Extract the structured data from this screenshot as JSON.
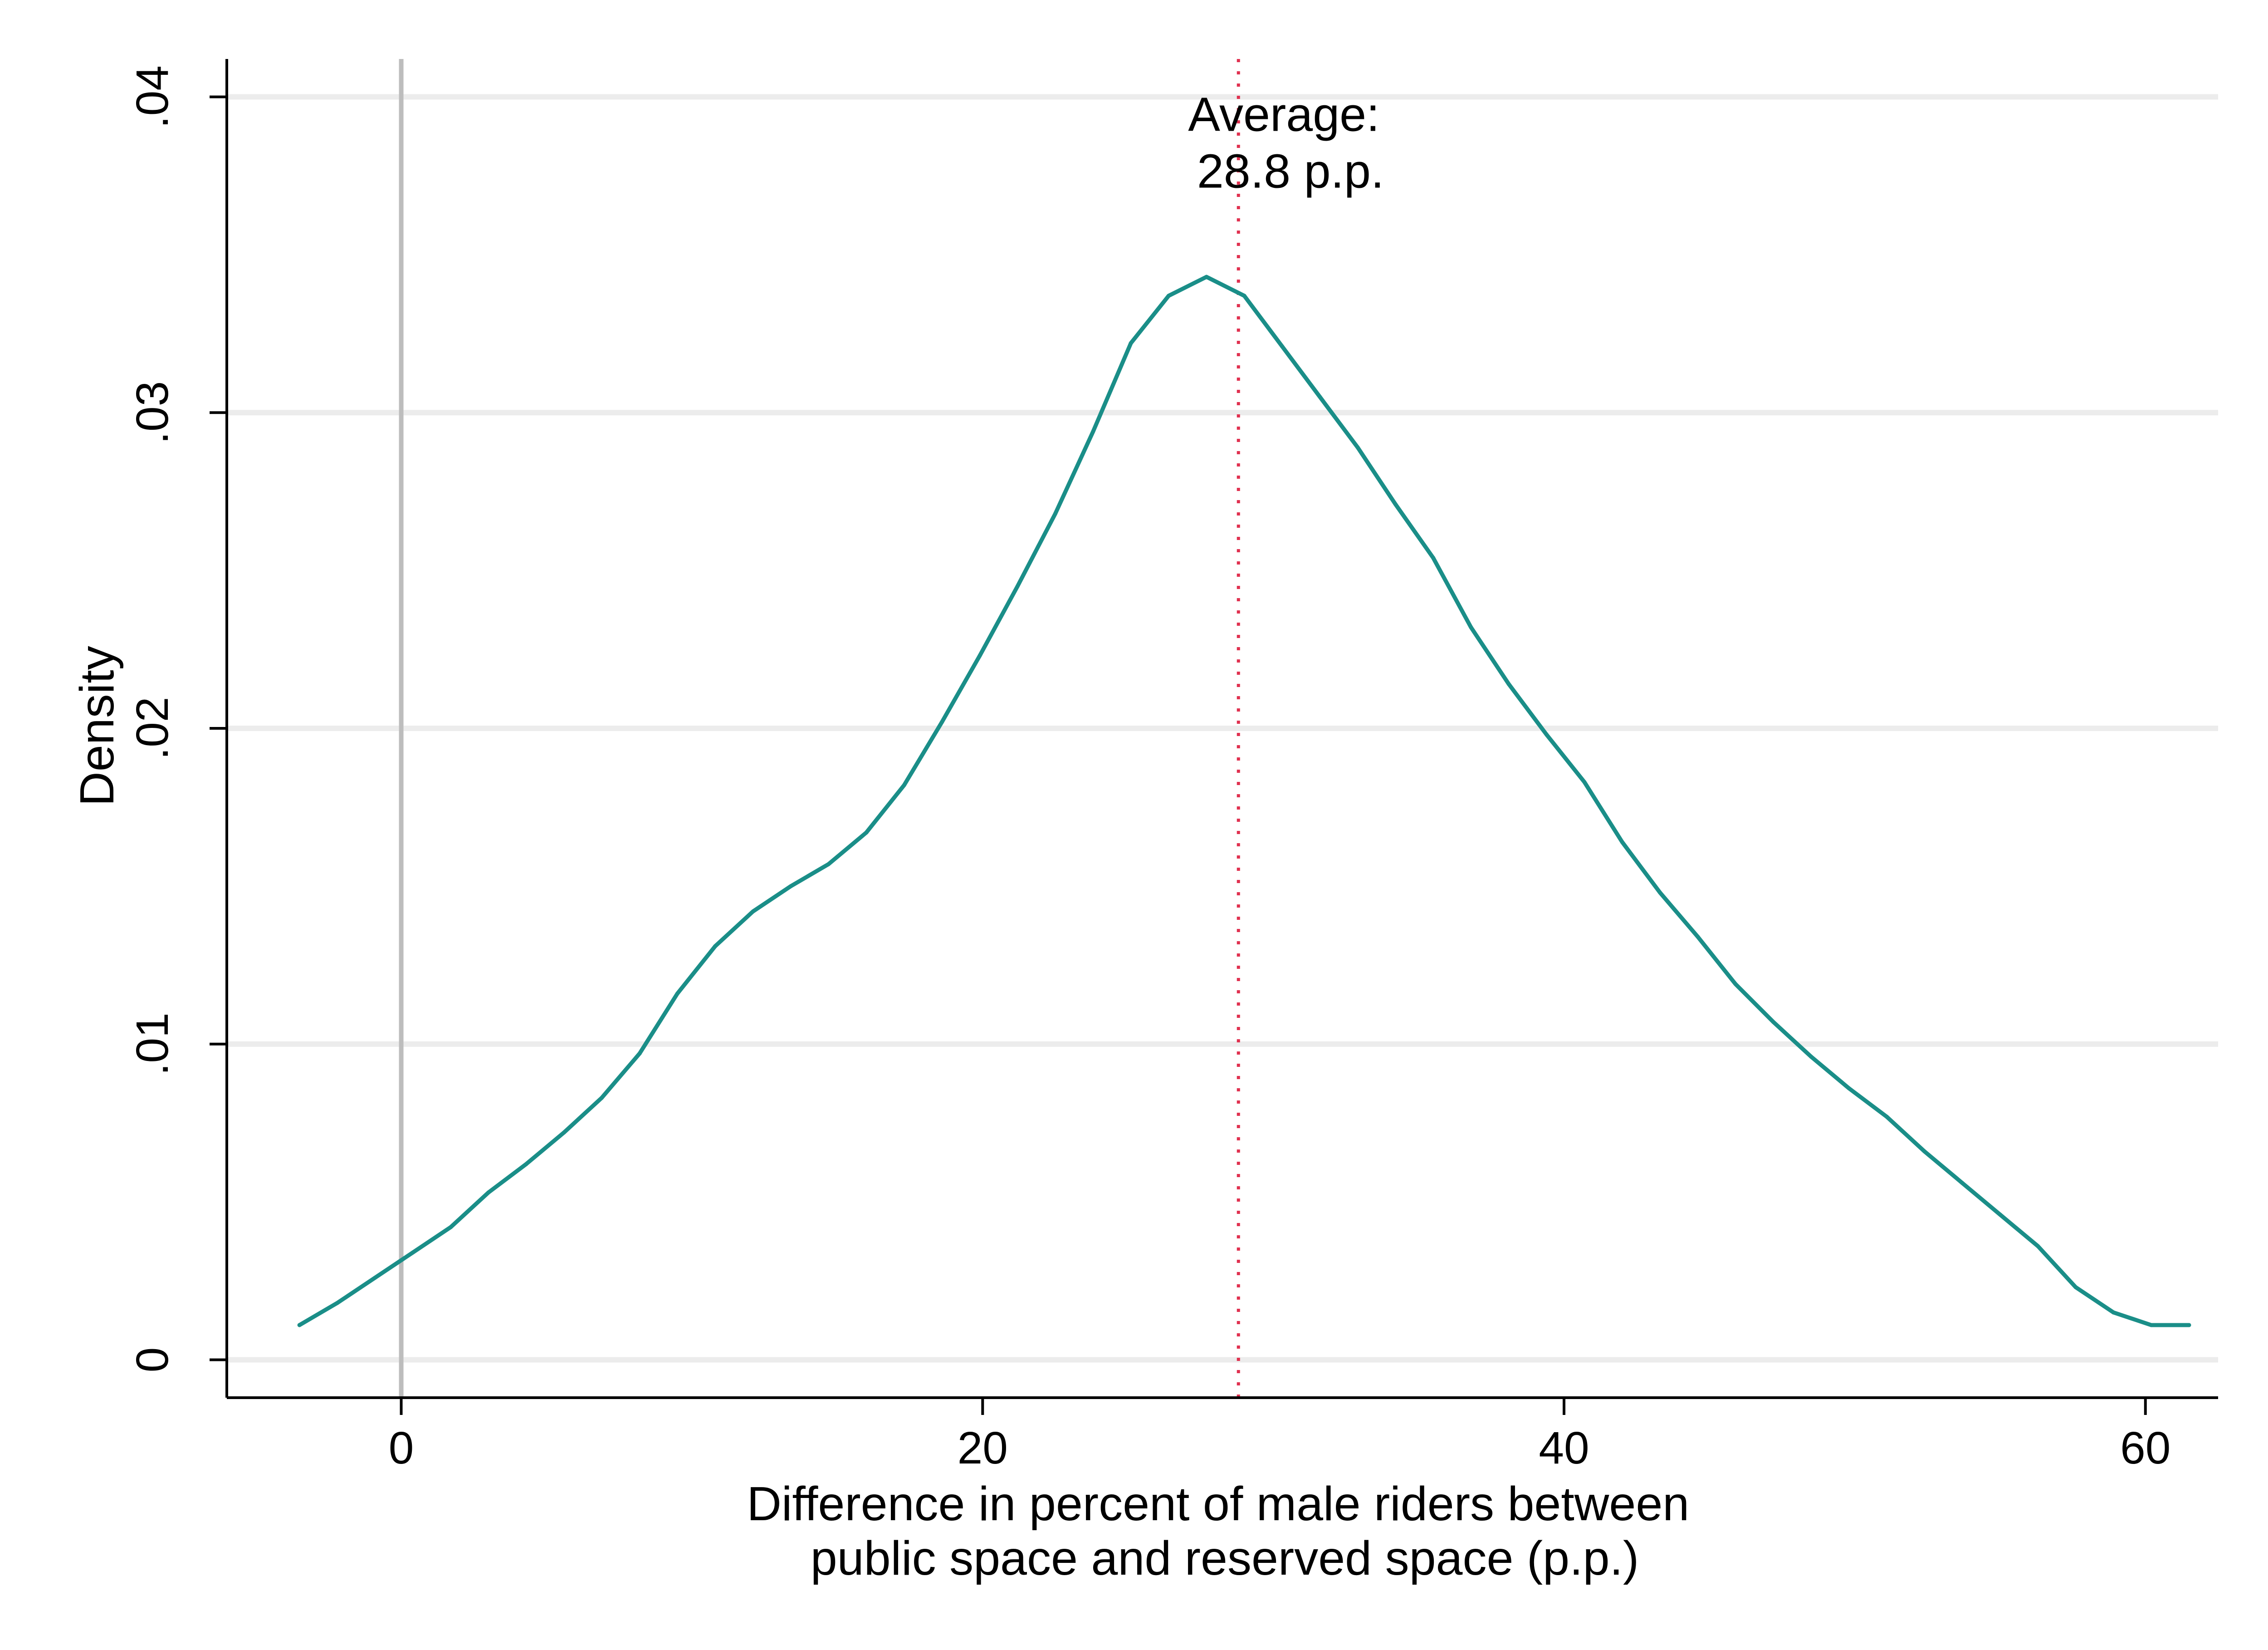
{
  "chart_data": {
    "type": "line",
    "xlabel_lines": [
      "Difference in percent of male riders between",
      "public space and reserved space (p.p.)"
    ],
    "ylabel": "Density",
    "xlim": [
      -6,
      62.5
    ],
    "ylim": [
      -0.0012,
      0.0412
    ],
    "x_ticks": [
      0,
      20,
      40,
      60
    ],
    "x_tick_labels": [
      "0",
      "20",
      "40",
      "60"
    ],
    "y_ticks": [
      0,
      0.01,
      0.02,
      0.03,
      0.04
    ],
    "y_tick_labels": [
      "0",
      ".01",
      ".02",
      ".03",
      ".04"
    ],
    "grid": "horizontal",
    "colors": {
      "series": "#1a8e88",
      "mean_line": "#e0304f",
      "zero_line": "#bdbdbd",
      "grid": "#ececec",
      "axis": "#000000"
    },
    "reference_lines": [
      {
        "x": 0,
        "style": "solid",
        "color_key": "zero_line"
      },
      {
        "x": 28.8,
        "style": "dotted",
        "color_key": "mean_line"
      }
    ],
    "annotation": {
      "lines": [
        "Average:",
        "28.8 p.p."
      ],
      "x": 29.5,
      "y": 0.0395
    },
    "series": [
      {
        "x": [
          -3.5,
          -2.2,
          -0.9,
          0.4,
          1.7,
          3.0,
          4.3,
          5.6,
          6.9,
          8.2,
          9.5,
          10.8,
          12.1,
          13.4,
          14.7,
          16.0,
          17.3,
          18.6,
          19.9,
          21.2,
          22.5,
          23.8,
          25.1,
          26.4,
          27.7,
          29.0,
          30.3,
          31.6,
          32.9,
          34.2,
          35.5,
          36.8,
          38.1,
          39.4,
          40.7,
          42.0,
          43.3,
          44.6,
          45.9,
          47.2,
          48.5,
          49.8,
          51.1,
          52.4,
          53.7,
          55.0,
          56.3,
          57.6,
          58.9,
          60.2,
          61.5
        ],
        "y": [
          0.0011,
          0.0018,
          0.0026,
          0.0034,
          0.0042,
          0.0053,
          0.0062,
          0.0072,
          0.0083,
          0.0097,
          0.0116,
          0.0131,
          0.0142,
          0.015,
          0.0157,
          0.0167,
          0.0182,
          0.0202,
          0.0223,
          0.0245,
          0.0268,
          0.0294,
          0.0322,
          0.0337,
          0.0343,
          0.0337,
          0.0321,
          0.0305,
          0.0289,
          0.0271,
          0.0254,
          0.0232,
          0.0214,
          0.0198,
          0.0183,
          0.0164,
          0.0148,
          0.0134,
          0.0119,
          0.0107,
          0.0096,
          0.0086,
          0.0077,
          0.0066,
          0.0056,
          0.0046,
          0.0036,
          0.0023,
          0.0015,
          0.0011,
          0.0011
        ]
      }
    ]
  }
}
